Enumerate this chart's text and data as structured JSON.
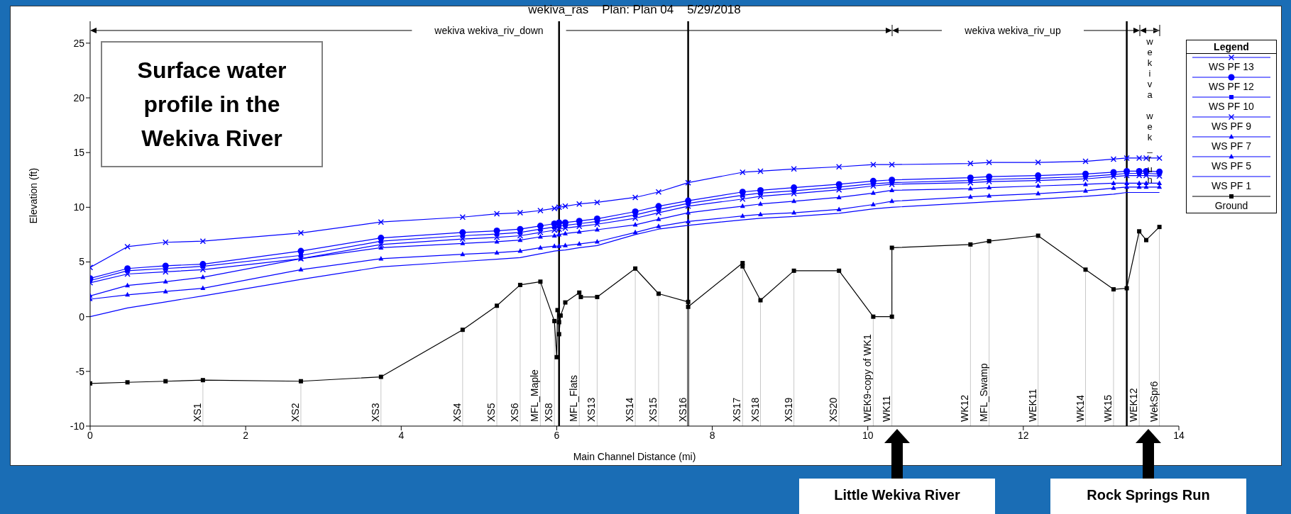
{
  "chart_data": {
    "type": "line",
    "title": "wekiva_ras    Plan: Plan 04    5/29/2018",
    "xlabel": "Main Channel Distance (mi)",
    "ylabel": "Elevation (ft)",
    "legend_title": "Legend",
    "legend": "right",
    "xlim": [
      0,
      14
    ],
    "xticks": [
      0,
      2,
      4,
      6,
      8,
      10,
      12,
      14
    ],
    "ylim": [
      -10,
      27
    ],
    "yticks": [
      -10,
      -5,
      0,
      5,
      10,
      15,
      20,
      25
    ],
    "x": [
      0,
      0.48,
      0.97,
      1.45,
      2.71,
      3.74,
      4.79,
      5.23,
      5.53,
      5.79,
      5.97,
      6.03,
      6.11,
      6.29,
      6.52,
      7.01,
      7.31,
      7.69,
      8.39,
      8.62,
      9.05,
      9.63,
      10.07,
      10.31,
      11.32,
      11.56,
      12.19,
      12.8,
      13.16,
      13.33,
      13.49,
      13.58,
      13.75
    ],
    "series": [
      {
        "name": "WS PF 13",
        "color": "#0000ff",
        "marker": "cross",
        "values": [
          4.5,
          6.4,
          6.8,
          6.9,
          7.65,
          8.65,
          9.1,
          9.4,
          9.5,
          9.7,
          9.9,
          10.0,
          10.1,
          10.3,
          10.45,
          10.9,
          11.4,
          12.25,
          13.2,
          13.3,
          13.5,
          13.7,
          13.9,
          13.9,
          14.0,
          14.1,
          14.1,
          14.2,
          14.4,
          14.5,
          14.5,
          14.5,
          14.5
        ]
      },
      {
        "name": "WS PF 12",
        "color": "#0000ff",
        "marker": "circle",
        "values": [
          3.5,
          4.4,
          4.65,
          4.8,
          6.0,
          7.2,
          7.7,
          7.85,
          8.0,
          8.3,
          8.5,
          8.6,
          8.6,
          8.75,
          8.95,
          9.6,
          10.1,
          10.6,
          11.4,
          11.55,
          11.8,
          12.1,
          12.4,
          12.5,
          12.7,
          12.8,
          12.9,
          13.05,
          13.2,
          13.3,
          13.3,
          13.3,
          13.25
        ]
      },
      {
        "name": "WS PF 10",
        "color": "#0000ff",
        "marker": "square",
        "values": [
          3.3,
          4.2,
          4.4,
          4.6,
          5.6,
          6.9,
          7.4,
          7.55,
          7.7,
          8.0,
          8.2,
          8.3,
          8.35,
          8.5,
          8.7,
          9.3,
          9.8,
          10.35,
          11.1,
          11.3,
          11.5,
          11.85,
          12.15,
          12.25,
          12.45,
          12.55,
          12.65,
          12.8,
          13.0,
          13.1,
          13.1,
          13.1,
          13.05
        ]
      },
      {
        "name": "WS PF 9",
        "color": "#0000ff",
        "marker": "cross",
        "values": [
          3.1,
          3.9,
          4.1,
          4.3,
          5.3,
          6.6,
          7.1,
          7.25,
          7.4,
          7.7,
          7.9,
          8.0,
          8.1,
          8.25,
          8.45,
          9.0,
          9.5,
          10.1,
          10.75,
          11.0,
          11.25,
          11.6,
          11.95,
          12.1,
          12.25,
          12.35,
          12.45,
          12.6,
          12.8,
          12.9,
          12.9,
          12.9,
          12.85
        ]
      },
      {
        "name": "WS PF 7",
        "color": "#0000ff",
        "marker": "triangle",
        "values": [
          1.9,
          2.85,
          3.2,
          3.6,
          5.3,
          6.3,
          6.7,
          6.85,
          7.0,
          7.3,
          7.4,
          7.5,
          7.6,
          7.75,
          7.95,
          8.4,
          8.9,
          9.5,
          10.1,
          10.3,
          10.55,
          10.9,
          11.3,
          11.55,
          11.7,
          11.8,
          11.95,
          12.1,
          12.2,
          12.2,
          12.2,
          12.2,
          12.2
        ]
      },
      {
        "name": "WS PF 5",
        "color": "#0000ff",
        "marker": "triangle",
        "values": [
          1.6,
          2.0,
          2.3,
          2.6,
          4.3,
          5.3,
          5.7,
          5.85,
          6.0,
          6.3,
          6.45,
          6.45,
          6.5,
          6.65,
          6.85,
          7.7,
          8.25,
          8.7,
          9.2,
          9.35,
          9.5,
          9.8,
          10.25,
          10.55,
          10.95,
          11.05,
          11.25,
          11.5,
          11.75,
          11.85,
          11.85,
          11.85,
          11.85
        ]
      },
      {
        "name": "WS PF 1",
        "color": "#0000ff",
        "marker": "none",
        "values": [
          0.0,
          0.8,
          1.35,
          1.9,
          3.4,
          4.55,
          5.05,
          5.25,
          5.4,
          5.75,
          6.0,
          6.05,
          6.1,
          6.3,
          6.5,
          7.5,
          8.0,
          8.35,
          8.85,
          9.0,
          9.15,
          9.45,
          9.85,
          10.0,
          10.4,
          10.5,
          10.75,
          11.0,
          11.2,
          11.35,
          11.35,
          11.35,
          11.35
        ]
      },
      {
        "name": "Ground",
        "color": "#000000",
        "marker": "square",
        "x": [
          0,
          0.48,
          0.97,
          1.45,
          2.71,
          3.74,
          4.79,
          5.23,
          5.53,
          5.79,
          5.97,
          6.0,
          6.01,
          6.03,
          6.03,
          6.05,
          6.11,
          6.29,
          6.31,
          6.52,
          7.01,
          7.31,
          7.69,
          7.69,
          8.39,
          8.39,
          8.62,
          9.05,
          9.63,
          10.07,
          10.31,
          10.31,
          11.32,
          11.56,
          12.19,
          12.8,
          13.16,
          13.33,
          13.49,
          13.58,
          13.75
        ],
        "values": [
          -6.1,
          -6.0,
          -5.9,
          -5.8,
          -5.9,
          -5.5,
          -1.2,
          1.0,
          2.9,
          3.2,
          -0.4,
          -3.7,
          0.6,
          -0.5,
          -1.6,
          0.1,
          1.3,
          2.2,
          1.8,
          1.8,
          4.4,
          2.1,
          1.35,
          0.9,
          4.9,
          4.6,
          1.5,
          4.2,
          4.2,
          0.0,
          0.0,
          6.3,
          6.6,
          6.9,
          7.4,
          4.3,
          2.5,
          2.6,
          7.8,
          7.0,
          8.2
        ]
      }
    ],
    "ref_lines": [
      {
        "axis": "x",
        "value": 6.03,
        "color": "#000000"
      },
      {
        "axis": "x",
        "value": 7.69,
        "color": "#000000"
      },
      {
        "axis": "x",
        "value": 13.33,
        "color": "#000000"
      }
    ],
    "annotations": [
      "Surface water profile in the Wekiva River",
      "wekiva wekiva_riv_down",
      "wekiva wekiva_riv_up",
      "wekiva wek_run",
      "Little Wekiva River",
      "Rock Springs Run",
      {
        "text": "XS1",
        "x": 1.45,
        "y": -5.8
      },
      {
        "text": "XS2",
        "x": 2.71,
        "y": -5.9
      },
      {
        "text": "XS3",
        "x": 3.74,
        "y": -5.5
      },
      {
        "text": "XS4",
        "x": 4.79,
        "y": -1.2
      },
      {
        "text": "XS5",
        "x": 5.23,
        "y": 1.0
      },
      {
        "text": "XS6",
        "x": 5.53,
        "y": 2.9
      },
      {
        "text": "MFL_Maple",
        "x": 5.79,
        "y": 3.2
      },
      {
        "text": "XS8",
        "x": 5.97,
        "y": -0.4
      },
      {
        "text": "MFL_Flats",
        "x": 6.29,
        "y": 2.2
      },
      {
        "text": "XS13",
        "x": 6.52,
        "y": 1.8
      },
      {
        "text": "XS14",
        "x": 7.01,
        "y": 4.4
      },
      {
        "text": "XS15",
        "x": 7.31,
        "y": 2.1
      },
      {
        "text": "XS16",
        "x": 7.69,
        "y": 0.9
      },
      {
        "text": "XS17",
        "x": 8.39,
        "y": 4.6
      },
      {
        "text": "XS18",
        "x": 8.62,
        "y": 1.5
      },
      {
        "text": "XS19",
        "x": 9.05,
        "y": 4.2
      },
      {
        "text": "XS20",
        "x": 9.63,
        "y": 4.2
      },
      {
        "text": "WEK9-copy of WK1",
        "x": 10.07,
        "y": 0.0
      },
      {
        "text": "WK11",
        "x": 10.31,
        "y": 0.0
      },
      {
        "text": "WK12",
        "x": 11.32,
        "y": 6.6
      },
      {
        "text": "MFL_Swamp",
        "x": 11.56,
        "y": 6.9
      },
      {
        "text": "WEK11",
        "x": 12.19,
        "y": 7.4
      },
      {
        "text": "WK14",
        "x": 12.8,
        "y": 4.3
      },
      {
        "text": "WK15",
        "x": 13.16,
        "y": 2.5
      },
      {
        "text": "WEK12",
        "x": 13.49,
        "y": 7.8
      },
      {
        "text": "WekSpr6",
        "x": 13.75,
        "y": 8.2
      }
    ]
  }
}
